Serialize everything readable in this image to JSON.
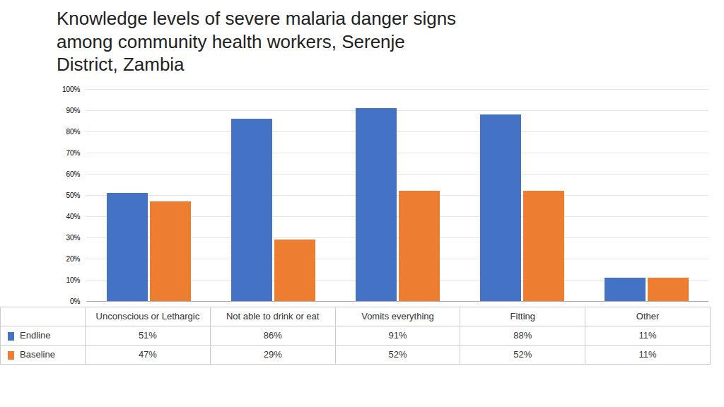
{
  "chart_data": {
    "type": "bar",
    "title": "Knowledge levels of severe malaria danger signs\namong community health workers, Serenje\nDistrict, Zambia",
    "categories": [
      "Unconscious or Lethargic",
      "Not able to drink or eat",
      "Vomits everything",
      "Fitting",
      "Other"
    ],
    "series": [
      {
        "name": "Endline",
        "color": "#4472C4",
        "values": [
          0.51,
          0.86,
          0.91,
          0.88,
          0.11
        ],
        "value_labels": [
          "51%",
          "86%",
          "91%",
          "88%",
          "11%"
        ]
      },
      {
        "name": "Baseline",
        "color": "#ED7D31",
        "values": [
          0.47,
          0.29,
          0.52,
          0.52,
          0.11
        ],
        "value_labels": [
          "47%",
          "29%",
          "52%",
          "52%",
          "11%"
        ]
      }
    ],
    "ylim": [
      0,
      1.0
    ],
    "yticks": [
      {
        "value": 0.0,
        "label": "0%"
      },
      {
        "value": 0.1,
        "label": "10%"
      },
      {
        "value": 0.2,
        "label": "20%"
      },
      {
        "value": 0.3,
        "label": "30%"
      },
      {
        "value": 0.4,
        "label": "40%"
      },
      {
        "value": 0.5,
        "label": "50%"
      },
      {
        "value": 0.6,
        "label": "60%"
      },
      {
        "value": 0.7,
        "label": "70%"
      },
      {
        "value": 0.8,
        "label": "80%"
      },
      {
        "value": 0.9,
        "label": "90%"
      },
      {
        "value": 1.0,
        "label": "100%"
      }
    ],
    "grid": true,
    "tick_labels": "y"
  }
}
